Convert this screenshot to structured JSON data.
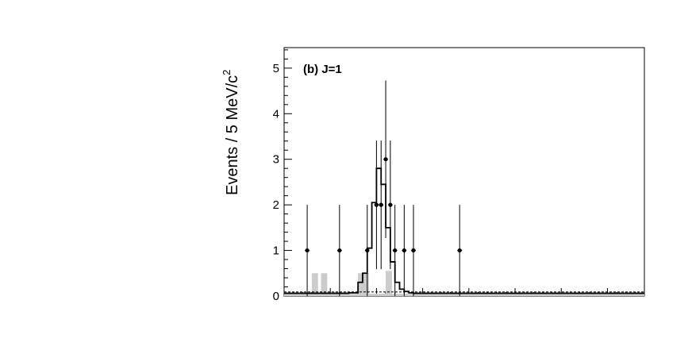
{
  "chart_data": {
    "type": "histogram",
    "panel_label": "(b)  J=1",
    "ylabel": "Events / 5 MeV/c",
    "ylabel_superscript": "2",
    "xlabel": "",
    "ylim": [
      0,
      5.45
    ],
    "y_ticks": [
      0,
      1,
      2,
      3,
      4,
      5
    ],
    "x_bins": 39,
    "data_points": [
      {
        "bin": 2.5,
        "y": 1,
        "err": 1
      },
      {
        "bin": 6.0,
        "y": 1,
        "err": 1
      },
      {
        "bin": 9.0,
        "y": 1,
        "err": 1
      },
      {
        "bin": 10.0,
        "y": 2,
        "err": 1.41
      },
      {
        "bin": 10.5,
        "y": 2,
        "err": 1.41
      },
      {
        "bin": 11.0,
        "y": 3,
        "err": 1.73
      },
      {
        "bin": 11.5,
        "y": 2,
        "err": 1.41
      },
      {
        "bin": 12.0,
        "y": 1,
        "err": 1
      },
      {
        "bin": 13.0,
        "y": 1,
        "err": 1
      },
      {
        "bin": 14.0,
        "y": 1,
        "err": 1
      },
      {
        "bin": 19.0,
        "y": 1,
        "err": 1
      }
    ],
    "fit_bin_edge_start": 7,
    "fit_values": [
      0.07,
      0.07,
      0.3,
      0.5,
      1.05,
      2.05,
      2.8,
      2.45,
      1.5,
      0.75,
      0.3,
      0.15,
      0.1,
      0.07
    ],
    "fit_baseline": 0.06,
    "background_bins": [
      {
        "bin": 3.0,
        "y": 0.5
      },
      {
        "bin": 4.0,
        "y": 0.5
      },
      {
        "bin": 8.0,
        "y": 0.5
      },
      {
        "bin": 8.5,
        "y": 0.5
      },
      {
        "bin": 11.0,
        "y": 0.55
      }
    ],
    "background_flat": 0.05
  }
}
